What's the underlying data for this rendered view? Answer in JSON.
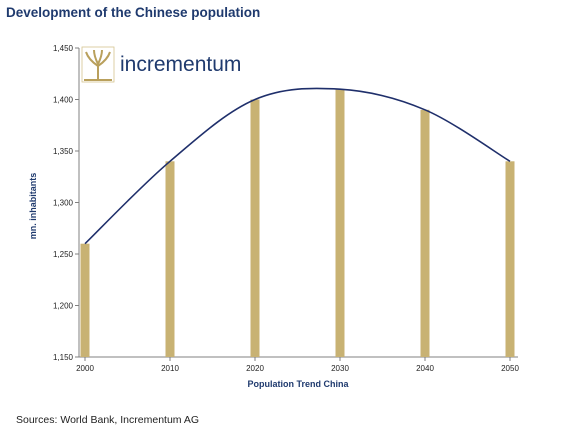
{
  "title": "Development of the Chinese population",
  "source": "Sources: World Bank, Incrementum AG",
  "logo": {
    "text": "incrementum",
    "icon": "tree-icon"
  },
  "colors": {
    "bar": "#c8b273",
    "curve": "#1f2f6b",
    "title": "#1f3a6e",
    "axis": "#808080",
    "logo_icon": "#b9a05c"
  },
  "chart_data": {
    "type": "bar",
    "categories": [
      "2000",
      "2010",
      "2020",
      "2030",
      "2040",
      "2050"
    ],
    "values": [
      1260,
      1340,
      1400,
      1410,
      1390,
      1340
    ],
    "trendline": {
      "type": "polynomial",
      "values": [
        1260,
        1340,
        1400,
        1410,
        1390,
        1340
      ]
    },
    "xlabel": "Population Trend China",
    "ylabel": "mn. inhabitants",
    "ylim": [
      1150,
      1450
    ],
    "yticks": [
      "1,150",
      "1,200",
      "1,250",
      "1,300",
      "1,350",
      "1,400",
      "1,450"
    ],
    "ytick_values": [
      1150,
      1200,
      1250,
      1300,
      1350,
      1400,
      1450
    ],
    "grid": false,
    "legend": "none"
  }
}
